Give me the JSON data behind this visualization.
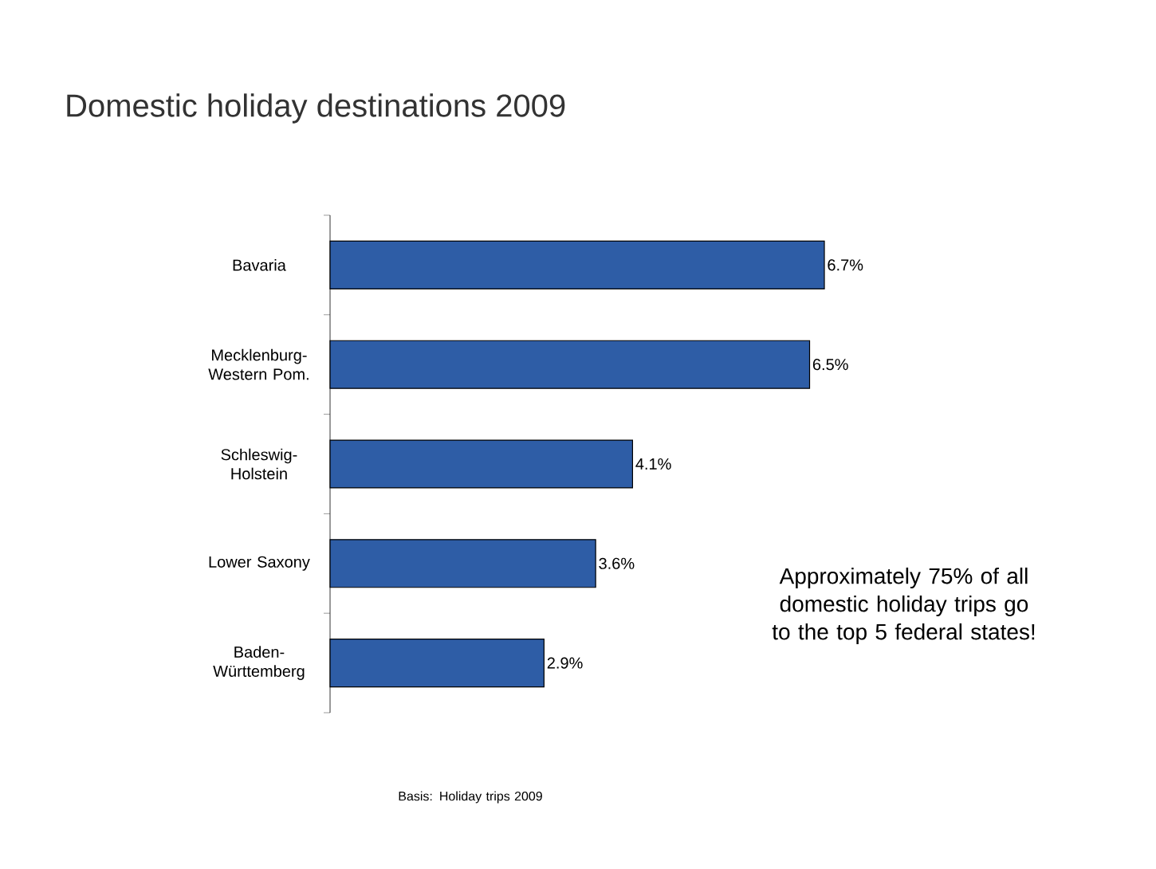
{
  "chart_data": {
    "type": "bar",
    "orientation": "horizontal",
    "title": "Domestic holiday destinations 2009",
    "categories": [
      "Bavaria",
      "Mecklenburg-Western Pom.",
      "Schleswig-Holstein",
      "Lower Saxony",
      "Baden-Württemberg"
    ],
    "values": [
      6.7,
      6.5,
      4.1,
      3.6,
      2.9
    ],
    "value_labels": [
      "6.7%",
      "6.5%",
      "4.1%",
      "3.6%",
      "2.9%"
    ],
    "color": "#2e5da6",
    "annotations": [
      "Approximately 75% of all domestic holiday trips go to the top 5 federal states!",
      "Basis: Holiday trips 2009"
    ]
  }
}
